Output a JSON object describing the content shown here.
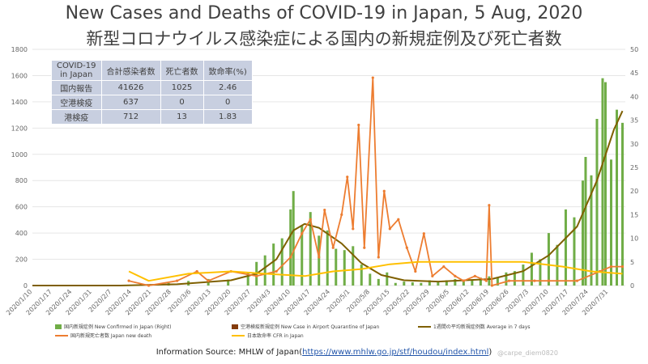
{
  "title": "New Cases and Deaths of COVID-19 in Japan, 5 Aug, 2020",
  "subtitle": "新型コロナウイルス感染症による国内の新規症例及び死亡者数",
  "stats_table": {
    "header": [
      "COVID-19\nin Japan",
      "合計感染者数",
      "死亡者数",
      "致命率(%)"
    ],
    "rows": [
      [
        "国内報告",
        "41626",
        "1025",
        "2.46"
      ],
      [
        "空港検疫",
        "637",
        "0",
        "0"
      ],
      [
        "港検疫",
        "712",
        "13",
        "1.83"
      ]
    ]
  },
  "legend": {
    "confirmed": "国内新規症例 New Confirmed in Japan (Right)",
    "quarantine": "空港検疫新規症例 New Case in Airport Quarantine of Japan",
    "avg7": "1週間の平均新規症例数 Average in 7 days",
    "deaths": "国内新規死亡者数 Japan new death",
    "cfr": "日本致命率 CFR in Japan"
  },
  "source_label": "Information Source: MHLW of Japan(",
  "source_link": "https://www.mhlw.go.jp/stf/houdou/index.html",
  "source_close": ")",
  "credit": "@carpe_diem0820",
  "colors": {
    "confirmed": "#70ad47",
    "quarantine": "#843c0c",
    "avg7": "#7f6000",
    "deaths": "#ed7d31",
    "cfr": "#ffc000",
    "table_bg": "#c8cfe0",
    "grid": "#e6e6e6"
  },
  "chart_data": {
    "type": "bar+line",
    "left_axis": {
      "min": 0,
      "max": 1800,
      "ticks": [
        0,
        200,
        400,
        600,
        800,
        1000,
        1200,
        1400,
        1600,
        1800
      ]
    },
    "right_axis": {
      "min": 0,
      "max": 50,
      "ticks": [
        0,
        5,
        10,
        15,
        20,
        25,
        30,
        35,
        40,
        45,
        50
      ]
    },
    "x_labels": [
      "2020/1/10",
      "2020/1/17",
      "2020/1/24",
      "2020/1/31",
      "2020/2/7",
      "2020/2/14",
      "2020/2/21",
      "2020/2/28",
      "2020/3/6",
      "2020/3/13",
      "2020/3/20",
      "2020/3/27",
      "2020/4/3",
      "2020/4/10",
      "2020/4/17",
      "2020/4/24",
      "2020/5/1",
      "2020/5/8",
      "2020/5/15",
      "2020/5/22",
      "2020/5/29",
      "2020/6/5",
      "2020/6/12",
      "2020/6/19",
      "2020/6/26",
      "2020/7/3",
      "2020/7/10",
      "2020/7/17",
      "2020/7/24",
      "2020/7/31"
    ],
    "grid": true,
    "series": [
      {
        "name": "国内新規症例 New Confirmed in Japan (Right)",
        "type": "bar",
        "axis": "left",
        "points": [
          [
            "2020/1/16",
            1
          ],
          [
            "2020/2/13",
            5
          ],
          [
            "2020/2/20",
            10
          ],
          [
            "2020/2/27",
            20
          ],
          [
            "2020/3/5",
            35
          ],
          [
            "2020/3/12",
            50
          ],
          [
            "2020/3/19",
            45
          ],
          [
            "2020/3/26",
            95
          ],
          [
            "2020/3/29",
            180
          ],
          [
            "2020/4/1",
            230
          ],
          [
            "2020/4/4",
            320
          ],
          [
            "2020/4/7",
            360
          ],
          [
            "2020/4/10",
            580
          ],
          [
            "2020/4/11",
            720
          ],
          [
            "2020/4/14",
            460
          ],
          [
            "2020/4/17",
            560
          ],
          [
            "2020/4/20",
            380
          ],
          [
            "2020/4/23",
            420
          ],
          [
            "2020/4/26",
            280
          ],
          [
            "2020/4/29",
            270
          ],
          [
            "2020/5/2",
            300
          ],
          [
            "2020/5/5",
            160
          ],
          [
            "2020/5/8",
            90
          ],
          [
            "2020/5/11",
            50
          ],
          [
            "2020/5/14",
            100
          ],
          [
            "2020/5/17",
            20
          ],
          [
            "2020/5/20",
            30
          ],
          [
            "2020/5/23",
            25
          ],
          [
            "2020/5/26",
            20
          ],
          [
            "2020/5/29",
            40
          ],
          [
            "2020/6/1",
            30
          ],
          [
            "2020/6/4",
            40
          ],
          [
            "2020/6/7",
            50
          ],
          [
            "2020/6/10",
            40
          ],
          [
            "2020/6/13",
            45
          ],
          [
            "2020/6/16",
            60
          ],
          [
            "2020/6/19",
            70
          ],
          [
            "2020/6/22",
            60
          ],
          [
            "2020/6/25",
            100
          ],
          [
            "2020/6/28",
            110
          ],
          [
            "2020/7/1",
            160
          ],
          [
            "2020/7/4",
            250
          ],
          [
            "2020/7/7",
            200
          ],
          [
            "2020/7/10",
            400
          ],
          [
            "2020/7/13",
            310
          ],
          [
            "2020/7/16",
            580
          ],
          [
            "2020/7/19",
            520
          ],
          [
            "2020/7/22",
            800
          ],
          [
            "2020/7/23",
            980
          ],
          [
            "2020/7/25",
            840
          ],
          [
            "2020/7/27",
            1270
          ],
          [
            "2020/7/29",
            1580
          ],
          [
            "2020/7/30",
            1550
          ],
          [
            "2020/8/1",
            960
          ],
          [
            "2020/8/3",
            1340
          ],
          [
            "2020/8/5",
            1240
          ]
        ]
      },
      {
        "name": "1週間の平均新規症例数 Average in 7 days",
        "type": "line",
        "axis": "left",
        "points": [
          [
            "2020/1/10",
            0
          ],
          [
            "2020/2/10",
            0
          ],
          [
            "2020/3/1",
            10
          ],
          [
            "2020/3/20",
            40
          ],
          [
            "2020/3/29",
            90
          ],
          [
            "2020/4/5",
            200
          ],
          [
            "2020/4/11",
            420
          ],
          [
            "2020/4/15",
            470
          ],
          [
            "2020/4/20",
            440
          ],
          [
            "2020/4/28",
            320
          ],
          [
            "2020/5/5",
            170
          ],
          [
            "2020/5/12",
            80
          ],
          [
            "2020/5/20",
            40
          ],
          [
            "2020/6/1",
            30
          ],
          [
            "2020/6/20",
            50
          ],
          [
            "2020/7/1",
            110
          ],
          [
            "2020/7/10",
            230
          ],
          [
            "2020/7/20",
            450
          ],
          [
            "2020/7/27",
            800
          ],
          [
            "2020/8/2",
            1190
          ],
          [
            "2020/8/5",
            1330
          ]
        ]
      },
      {
        "name": "国内新規死亡者数 Japan new death",
        "type": "line",
        "axis": "right",
        "points": [
          [
            "2020/2/13",
            1
          ],
          [
            "2020/2/20",
            0
          ],
          [
            "2020/3/1",
            1
          ],
          [
            "2020/3/8",
            3
          ],
          [
            "2020/3/12",
            1
          ],
          [
            "2020/3/20",
            3
          ],
          [
            "2020/3/29",
            2
          ],
          [
            "2020/4/5",
            3
          ],
          [
            "2020/4/10",
            6
          ],
          [
            "2020/4/14",
            11
          ],
          [
            "2020/4/17",
            14
          ],
          [
            "2020/4/20",
            6
          ],
          [
            "2020/4/22",
            16
          ],
          [
            "2020/4/25",
            8
          ],
          [
            "2020/4/28",
            15
          ],
          [
            "2020/4/30",
            23
          ],
          [
            "2020/5/2",
            12
          ],
          [
            "2020/5/4",
            34
          ],
          [
            "2020/5/6",
            8
          ],
          [
            "2020/5/9",
            44
          ],
          [
            "2020/5/11",
            6
          ],
          [
            "2020/5/13",
            20
          ],
          [
            "2020/5/15",
            12
          ],
          [
            "2020/5/18",
            14
          ],
          [
            "2020/5/21",
            8
          ],
          [
            "2020/5/24",
            3
          ],
          [
            "2020/5/27",
            11
          ],
          [
            "2020/5/30",
            2
          ],
          [
            "2020/6/3",
            4
          ],
          [
            "2020/6/7",
            2
          ],
          [
            "2020/6/10",
            1
          ],
          [
            "2020/6/14",
            2
          ],
          [
            "2020/6/18",
            1
          ],
          [
            "2020/6/19",
            17
          ],
          [
            "2020/6/20",
            0
          ],
          [
            "2020/6/26",
            1
          ],
          [
            "2020/7/5",
            1
          ],
          [
            "2020/7/10",
            1
          ],
          [
            "2020/7/20",
            1
          ],
          [
            "2020/7/28",
            3
          ],
          [
            "2020/8/1",
            4
          ],
          [
            "2020/8/5",
            4
          ]
        ]
      },
      {
        "name": "日本致命率 CFR in Japan",
        "type": "line",
        "axis": "right",
        "points": [
          [
            "2020/2/13",
            3
          ],
          [
            "2020/2/20",
            1
          ],
          [
            "2020/3/5",
            2.5
          ],
          [
            "2020/3/20",
            3
          ],
          [
            "2020/4/1",
            2.5
          ],
          [
            "2020/4/15",
            2
          ],
          [
            "2020/4/25",
            3
          ],
          [
            "2020/5/5",
            3.5
          ],
          [
            "2020/5/15",
            4.5
          ],
          [
            "2020/5/25",
            5
          ],
          [
            "2020/6/5",
            5
          ],
          [
            "2020/6/20",
            5
          ],
          [
            "2020/7/1",
            5
          ],
          [
            "2020/7/15",
            4
          ],
          [
            "2020/7/25",
            3
          ],
          [
            "2020/8/5",
            2.5
          ]
        ]
      }
    ]
  }
}
